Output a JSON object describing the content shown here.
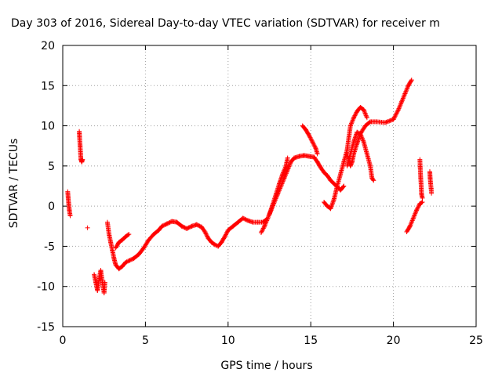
{
  "chart_data": {
    "type": "scatter",
    "title": "Day 303 of 2016, Sidereal Day-to-day VTEC variation (SDTVAR) for receiver m",
    "xlabel": "GPS time / hours",
    "ylabel": "SDTVAR / TECUs",
    "xlim": [
      0,
      25
    ],
    "ylim": [
      -15,
      20
    ],
    "xticks": [
      0,
      5,
      10,
      15,
      20,
      25
    ],
    "yticks": [
      -15,
      -10,
      -5,
      0,
      5,
      10,
      15,
      20
    ],
    "grid": true,
    "marker": "+",
    "color": "#ff0000",
    "series": [
      {
        "segments": [
          [
            [
              0.3,
              1.8
            ],
            [
              0.33,
              1.0
            ],
            [
              0.36,
              0.3
            ],
            [
              0.4,
              -0.5
            ],
            [
              0.45,
              -1.2
            ]
          ],
          [
            [
              1.0,
              9.3
            ],
            [
              1.02,
              8.5
            ],
            [
              1.05,
              7.5
            ],
            [
              1.08,
              6.5
            ],
            [
              1.1,
              5.8
            ],
            [
              1.15,
              5.5
            ],
            [
              1.2,
              5.8
            ]
          ],
          [
            [
              1.9,
              -8.5
            ],
            [
              2.0,
              -9.5
            ],
            [
              2.1,
              -10.5
            ],
            [
              2.2,
              -9.0
            ],
            [
              2.3,
              -8.0
            ],
            [
              2.4,
              -9.5
            ],
            [
              2.5,
              -10.8
            ],
            [
              2.55,
              -9.5
            ]
          ],
          [
            [
              2.7,
              -2.0
            ],
            [
              2.8,
              -3.5
            ],
            [
              2.9,
              -4.5
            ],
            [
              3.0,
              -5.5
            ],
            [
              3.1,
              -6.5
            ],
            [
              3.2,
              -7.3
            ],
            [
              3.4,
              -7.8
            ],
            [
              3.6,
              -7.5
            ],
            [
              3.8,
              -7.0
            ],
            [
              4.0,
              -6.8
            ],
            [
              4.3,
              -6.5
            ],
            [
              4.6,
              -6.0
            ],
            [
              4.9,
              -5.2
            ],
            [
              5.2,
              -4.2
            ],
            [
              5.5,
              -3.5
            ],
            [
              5.8,
              -3.0
            ],
            [
              6.0,
              -2.5
            ],
            [
              6.3,
              -2.2
            ],
            [
              6.6,
              -1.9
            ],
            [
              6.9,
              -2.0
            ],
            [
              7.2,
              -2.5
            ],
            [
              7.5,
              -2.8
            ],
            [
              7.8,
              -2.5
            ],
            [
              8.1,
              -2.3
            ],
            [
              8.4,
              -2.6
            ],
            [
              8.6,
              -3.2
            ],
            [
              8.8,
              -4.0
            ],
            [
              9.0,
              -4.5
            ],
            [
              9.2,
              -4.8
            ],
            [
              9.4,
              -5.0
            ],
            [
              9.6,
              -4.5
            ],
            [
              9.8,
              -3.8
            ],
            [
              10.0,
              -3.0
            ],
            [
              10.3,
              -2.5
            ],
            [
              10.6,
              -2.0
            ],
            [
              10.9,
              -1.5
            ],
            [
              11.2,
              -1.8
            ],
            [
              11.5,
              -2.0
            ],
            [
              11.8,
              -2.0
            ],
            [
              12.1,
              -2.0
            ],
            [
              12.3,
              -1.7
            ]
          ],
          [
            [
              3.2,
              -5.2
            ],
            [
              3.4,
              -4.5
            ],
            [
              3.6,
              -4.2
            ],
            [
              3.8,
              -3.8
            ],
            [
              4.0,
              -3.5
            ]
          ],
          [
            [
              12.0,
              -3.3
            ],
            [
              12.2,
              -2.5
            ],
            [
              12.4,
              -1.5
            ],
            [
              12.6,
              -0.5
            ],
            [
              12.8,
              0.5
            ],
            [
              13.0,
              1.5
            ],
            [
              13.2,
              2.5
            ],
            [
              13.4,
              3.5
            ],
            [
              13.6,
              4.5
            ],
            [
              13.8,
              5.5
            ],
            [
              14.0,
              6.0
            ],
            [
              14.3,
              6.2
            ],
            [
              14.6,
              6.3
            ],
            [
              14.9,
              6.2
            ],
            [
              15.2,
              6.1
            ],
            [
              15.4,
              5.5
            ],
            [
              15.6,
              4.8
            ],
            [
              15.8,
              4.2
            ],
            [
              16.0,
              3.8
            ],
            [
              16.2,
              3.2
            ],
            [
              16.4,
              2.8
            ],
            [
              16.6,
              2.4
            ],
            [
              16.8,
              2.0
            ],
            [
              17.0,
              2.5
            ]
          ],
          [
            [
              12.5,
              -1.0
            ],
            [
              12.7,
              0.2
            ],
            [
              12.9,
              1.5
            ],
            [
              13.1,
              2.8
            ],
            [
              13.3,
              4.0
            ],
            [
              13.5,
              5.0
            ],
            [
              13.6,
              6.0
            ]
          ],
          [
            [
              14.5,
              10.0
            ],
            [
              14.7,
              9.5
            ],
            [
              14.9,
              8.8
            ],
            [
              15.1,
              8.0
            ],
            [
              15.3,
              7.2
            ],
            [
              15.4,
              6.5
            ]
          ],
          [
            [
              15.8,
              0.5
            ],
            [
              16.0,
              0.0
            ],
            [
              16.2,
              -0.3
            ],
            [
              16.4,
              0.8
            ],
            [
              16.6,
              2.5
            ],
            [
              16.8,
              4.0
            ],
            [
              17.0,
              5.5
            ],
            [
              17.2,
              7.0
            ],
            [
              17.3,
              8.5
            ],
            [
              17.4,
              10.0
            ],
            [
              17.6,
              11.0
            ],
            [
              17.8,
              11.8
            ],
            [
              18.0,
              12.3
            ],
            [
              18.2,
              12.0
            ],
            [
              18.4,
              11.0
            ]
          ],
          [
            [
              17.2,
              5.0
            ],
            [
              17.4,
              6.5
            ],
            [
              17.6,
              8.0
            ],
            [
              17.8,
              9.2
            ],
            [
              18.0,
              9.0
            ],
            [
              18.2,
              8.0
            ],
            [
              18.4,
              6.5
            ],
            [
              18.6,
              5.0
            ],
            [
              18.7,
              3.5
            ],
            [
              18.8,
              3.2
            ]
          ],
          [
            [
              17.2,
              6.5
            ],
            [
              17.4,
              5.0
            ],
            [
              17.5,
              5.5
            ],
            [
              17.6,
              6.5
            ],
            [
              17.8,
              7.8
            ],
            [
              18.0,
              9.0
            ],
            [
              18.3,
              10.0
            ],
            [
              18.6,
              10.5
            ],
            [
              19.0,
              10.5
            ],
            [
              19.5,
              10.4
            ],
            [
              20.0,
              10.8
            ],
            [
              20.3,
              12.0
            ],
            [
              20.5,
              13.0
            ],
            [
              20.7,
              14.0
            ],
            [
              20.9,
              15.0
            ],
            [
              21.1,
              15.7
            ]
          ],
          [
            [
              20.8,
              -3.2
            ],
            [
              21.0,
              -2.5
            ],
            [
              21.2,
              -1.5
            ],
            [
              21.4,
              -0.5
            ],
            [
              21.6,
              0.3
            ],
            [
              21.75,
              0.5
            ]
          ],
          [
            [
              21.6,
              5.8
            ],
            [
              21.62,
              4.8
            ],
            [
              21.65,
              3.5
            ],
            [
              21.68,
              2.5
            ],
            [
              21.7,
              1.5
            ],
            [
              21.75,
              1.0
            ]
          ],
          [
            [
              22.2,
              4.3
            ],
            [
              22.22,
              3.5
            ],
            [
              22.25,
              2.8
            ],
            [
              22.28,
              2.2
            ],
            [
              22.3,
              1.6
            ]
          ],
          [
            [
              1.5,
              -2.7
            ]
          ]
        ]
      }
    ]
  }
}
